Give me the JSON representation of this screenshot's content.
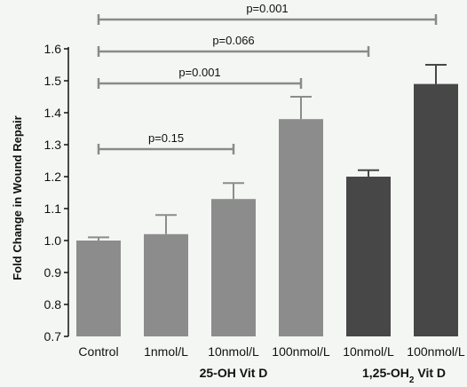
{
  "chart_data": {
    "type": "bar",
    "ylabel": "Fold Change in Wound Repair",
    "ylim": [
      0.7,
      1.6
    ],
    "yticks": [
      "0.7",
      "0.8",
      "0.9",
      "1.0",
      "1.1",
      "1.2",
      "1.3",
      "1.4",
      "1.5",
      "1.6"
    ],
    "categories": [
      "Control",
      "1nmol/L",
      "10nmol/L",
      "100nmol/L",
      "10nmol/L",
      "100nmol/L"
    ],
    "values": [
      1.0,
      1.02,
      1.13,
      1.38,
      1.2,
      1.49
    ],
    "errors": [
      0.01,
      0.06,
      0.05,
      0.07,
      0.02,
      0.06
    ],
    "bar_group": [
      0,
      1,
      1,
      1,
      2,
      2
    ],
    "group_labels": [
      {
        "text": "25-OH Vit D"
      },
      {
        "text_main": "1,25-OH",
        "text_sub": "2",
        "text_tail": " Vit D"
      }
    ],
    "comparisons": [
      {
        "label": "p=0.15",
        "from": 0,
        "to": 2
      },
      {
        "label": "p=0.001",
        "from": 0,
        "to": 3
      },
      {
        "label": "p=0.066",
        "from": 0,
        "to": 4
      },
      {
        "label": "p=0.001",
        "from": 0,
        "to": 5
      }
    ],
    "colors": {
      "control": "#8c8c8c",
      "group_25oh": "#8c8c8c",
      "group_125oh": "#474747",
      "bracket": "#8a8a8a",
      "axis": "#111111"
    },
    "grid": false
  }
}
